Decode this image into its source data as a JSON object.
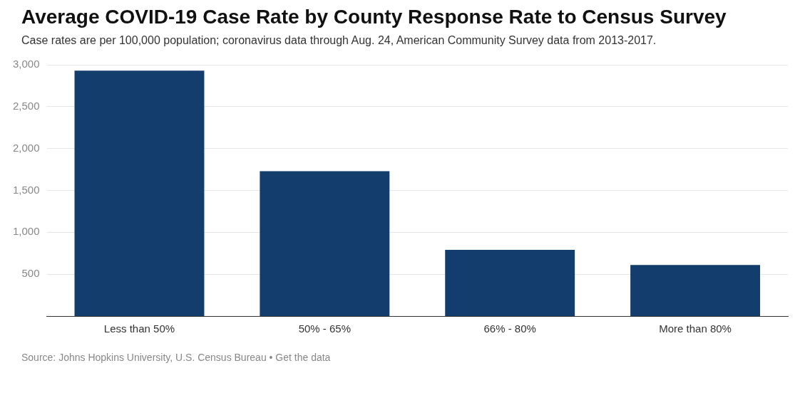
{
  "chart_data": {
    "type": "bar",
    "title": "Average COVID-19 Case Rate by County Response Rate to Census Survey",
    "subtitle": "Case rates are per 100,000 population; coronavirus data through Aug. 24, American Community Survey data from 2013-2017.",
    "categories": [
      "Less than 50%",
      "50% - 65%",
      "66% - 80%",
      "More than 80%"
    ],
    "values": [
      2930,
      1730,
      790,
      610
    ],
    "color": "#133d6d",
    "ylim": [
      0,
      3000
    ],
    "yticks": [
      500,
      {
        "value": 1000,
        "label": "1,000"
      },
      {
        "value": 1500,
        "label": "1,500"
      },
      {
        "value": 2000,
        "label": "2,000"
      },
      {
        "value": 2500,
        "label": "2,500"
      },
      {
        "value": 3000,
        "label": "3,000"
      }
    ],
    "grid": "y",
    "legend": false,
    "annotations": [
      "Source: Johns Hopkins University, U.S. Census Bureau • Get the data"
    ]
  }
}
